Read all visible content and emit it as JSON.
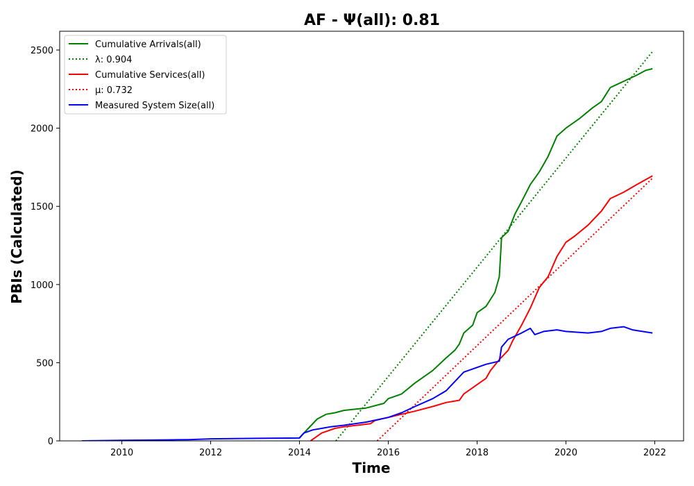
{
  "chart_data": {
    "type": "line",
    "title": "AF -  Ψ(all): 0.81",
    "xlabel": "Time",
    "ylabel": "PBIs (Calculated)",
    "xlim": [
      2008.6,
      2022.65
    ],
    "ylim": [
      0,
      2620
    ],
    "x_ticks": [
      2010,
      2012,
      2014,
      2016,
      2018,
      2020,
      2022
    ],
    "y_ticks": [
      0,
      500,
      1000,
      1500,
      2000,
      2500
    ],
    "grid": false,
    "legend_position": "top-left",
    "series": [
      {
        "name": "Cumulative Arrivals(all)",
        "style": "solid",
        "color": "#008000",
        "points": [
          [
            2014.0,
            20
          ],
          [
            2014.2,
            80
          ],
          [
            2014.4,
            140
          ],
          [
            2014.6,
            170
          ],
          [
            2014.8,
            180
          ],
          [
            2015.0,
            195
          ],
          [
            2015.5,
            210
          ],
          [
            2015.9,
            240
          ],
          [
            2016.0,
            270
          ],
          [
            2016.3,
            300
          ],
          [
            2016.6,
            370
          ],
          [
            2017.0,
            450
          ],
          [
            2017.3,
            530
          ],
          [
            2017.5,
            580
          ],
          [
            2017.6,
            620
          ],
          [
            2017.7,
            690
          ],
          [
            2017.9,
            740
          ],
          [
            2018.0,
            820
          ],
          [
            2018.2,
            860
          ],
          [
            2018.4,
            950
          ],
          [
            2018.5,
            1050
          ],
          [
            2018.55,
            1300
          ],
          [
            2018.7,
            1340
          ],
          [
            2018.85,
            1450
          ],
          [
            2019.0,
            1530
          ],
          [
            2019.2,
            1640
          ],
          [
            2019.4,
            1720
          ],
          [
            2019.6,
            1820
          ],
          [
            2019.8,
            1950
          ],
          [
            2020.0,
            2000
          ],
          [
            2020.3,
            2060
          ],
          [
            2020.6,
            2130
          ],
          [
            2020.8,
            2170
          ],
          [
            2021.0,
            2260
          ],
          [
            2021.3,
            2300
          ],
          [
            2021.6,
            2340
          ],
          [
            2021.8,
            2370
          ],
          [
            2021.95,
            2380
          ]
        ]
      },
      {
        "name": "λ: 0.904",
        "style": "dotted",
        "color": "#008000",
        "points": [
          [
            2014.82,
            0
          ],
          [
            2021.95,
            2490
          ]
        ]
      },
      {
        "name": "Cumulative Services(all)",
        "style": "solid",
        "color": "#ff0000",
        "points": [
          [
            2014.25,
            0
          ],
          [
            2014.5,
            50
          ],
          [
            2014.8,
            80
          ],
          [
            2015.0,
            90
          ],
          [
            2015.3,
            100
          ],
          [
            2015.6,
            110
          ],
          [
            2015.7,
            130
          ],
          [
            2016.0,
            150
          ],
          [
            2016.3,
            170
          ],
          [
            2016.6,
            190
          ],
          [
            2017.0,
            220
          ],
          [
            2017.3,
            245
          ],
          [
            2017.6,
            260
          ],
          [
            2017.7,
            300
          ],
          [
            2018.0,
            360
          ],
          [
            2018.2,
            400
          ],
          [
            2018.3,
            450
          ],
          [
            2018.5,
            520
          ],
          [
            2018.7,
            580
          ],
          [
            2018.8,
            640
          ],
          [
            2019.0,
            740
          ],
          [
            2019.2,
            850
          ],
          [
            2019.4,
            980
          ],
          [
            2019.6,
            1050
          ],
          [
            2019.8,
            1180
          ],
          [
            2020.0,
            1270
          ],
          [
            2020.2,
            1310
          ],
          [
            2020.5,
            1380
          ],
          [
            2020.8,
            1470
          ],
          [
            2021.0,
            1550
          ],
          [
            2021.3,
            1590
          ],
          [
            2021.6,
            1640
          ],
          [
            2021.95,
            1695
          ]
        ]
      },
      {
        "name": "μ: 0.732",
        "style": "dotted",
        "color": "#ff0000",
        "points": [
          [
            2015.75,
            0
          ],
          [
            2021.95,
            1680
          ]
        ]
      },
      {
        "name": "Measured System Size(all)",
        "style": "solid",
        "color": "#0000ff",
        "points": [
          [
            2009.1,
            0
          ],
          [
            2010.0,
            3
          ],
          [
            2011.0,
            6
          ],
          [
            2011.5,
            8
          ],
          [
            2012.0,
            13
          ],
          [
            2013.0,
            16
          ],
          [
            2014.0,
            18
          ],
          [
            2014.1,
            50
          ],
          [
            2014.3,
            70
          ],
          [
            2014.5,
            80
          ],
          [
            2014.7,
            90
          ],
          [
            2015.0,
            100
          ],
          [
            2015.5,
            120
          ],
          [
            2016.0,
            150
          ],
          [
            2016.3,
            180
          ],
          [
            2016.6,
            220
          ],
          [
            2017.0,
            270
          ],
          [
            2017.3,
            320
          ],
          [
            2017.5,
            380
          ],
          [
            2017.7,
            440
          ],
          [
            2018.0,
            470
          ],
          [
            2018.2,
            490
          ],
          [
            2018.5,
            510
          ],
          [
            2018.55,
            600
          ],
          [
            2018.7,
            650
          ],
          [
            2019.0,
            690
          ],
          [
            2019.2,
            720
          ],
          [
            2019.3,
            680
          ],
          [
            2019.5,
            700
          ],
          [
            2019.8,
            710
          ],
          [
            2020.0,
            700
          ],
          [
            2020.5,
            690
          ],
          [
            2020.8,
            700
          ],
          [
            2021.0,
            720
          ],
          [
            2021.3,
            730
          ],
          [
            2021.5,
            710
          ],
          [
            2021.95,
            690
          ]
        ]
      }
    ]
  }
}
